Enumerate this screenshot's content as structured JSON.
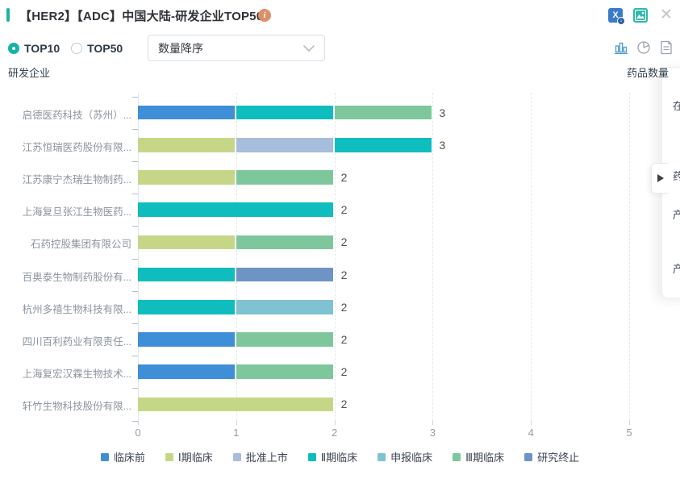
{
  "header": {
    "title": "【HER2】【ADC】中国大陆-研发企业TOP50",
    "actions": {
      "excel_export": "导出Excel",
      "image_export": "导出图片",
      "close": "关闭"
    }
  },
  "controls": {
    "radios": [
      {
        "label": "TOP10",
        "selected": true
      },
      {
        "label": "TOP50",
        "selected": false
      }
    ],
    "sort_dropdown": {
      "value": "数量降序"
    },
    "view_switch": [
      "bar-chart",
      "pie-chart",
      "report"
    ]
  },
  "axis_captions": {
    "left": "研发企业",
    "right": "药品数量"
  },
  "chart_data": {
    "type": "bar",
    "orientation": "horizontal",
    "stacked": true,
    "title": "【HER2】【ADC】中国大陆-研发企业TOP50",
    "categories": [
      "启德医药科技（苏州）...",
      "江苏恒瑞医药股份有限...",
      "江苏康宁杰瑞生物制药...",
      "上海复旦张江生物医药...",
      "石药控股集团有限公司",
      "百奥泰生物制药股份有...",
      "杭州多禧生物科技有限...",
      "四川百利药业有限责任...",
      "上海复宏汉霖生物技术...",
      "轩竹生物科技股份有限..."
    ],
    "series": [
      {
        "name": "临床前",
        "color": "#3f8ed8",
        "values": [
          1,
          0,
          0,
          0,
          0,
          0,
          0,
          1,
          1,
          0
        ]
      },
      {
        "name": "Ⅰ期临床",
        "color": "#c5d787",
        "values": [
          0,
          1,
          1,
          0,
          1,
          0,
          0,
          0,
          0,
          2
        ]
      },
      {
        "name": "批准上市",
        "color": "#a6bddc",
        "values": [
          0,
          1,
          0,
          0,
          0,
          0,
          0,
          0,
          0,
          0
        ]
      },
      {
        "name": "Ⅱ期临床",
        "color": "#0fbdbe",
        "values": [
          1,
          1,
          0,
          2,
          0,
          1,
          1,
          0,
          0,
          0
        ]
      },
      {
        "name": "申报临床",
        "color": "#7fc2d2",
        "values": [
          0,
          0,
          0,
          0,
          0,
          0,
          1,
          0,
          0,
          0
        ]
      },
      {
        "name": "Ⅲ期临床",
        "color": "#7ec79d",
        "values": [
          1,
          0,
          1,
          0,
          1,
          0,
          0,
          1,
          1,
          0
        ]
      },
      {
        "name": "研究终止",
        "color": "#6d94c5",
        "values": [
          0,
          0,
          0,
          0,
          0,
          1,
          0,
          0,
          0,
          0
        ]
      }
    ],
    "totals": [
      3,
      3,
      2,
      2,
      2,
      2,
      2,
      2,
      2,
      2
    ],
    "x_ticks": [
      0,
      1,
      2,
      3,
      4,
      5
    ],
    "xlim": [
      0,
      5
    ],
    "grid": "dashed-vertical",
    "legend_position": "bottom",
    "xlabel": "药品数量",
    "ylabel": "研发企业"
  },
  "right_panel": {
    "partial_items": [
      "在",
      "药",
      "产",
      "产"
    ]
  }
}
